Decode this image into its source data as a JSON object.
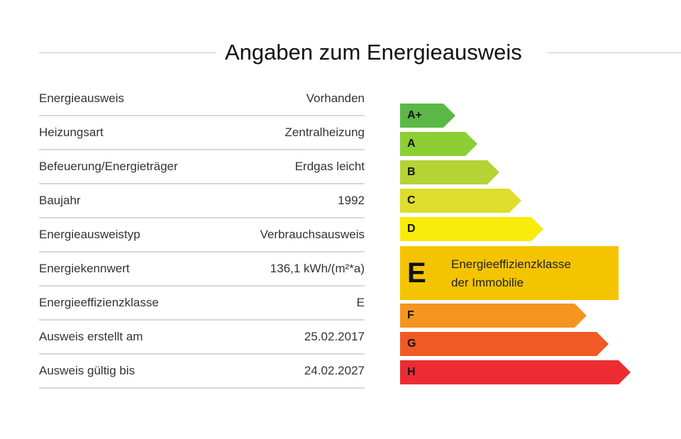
{
  "title": "Angaben zum Energieausweis",
  "details": [
    {
      "label": "Energieausweis",
      "value": "Vorhanden"
    },
    {
      "label": "Heizungsart",
      "value": "Zentralheizung"
    },
    {
      "label": "Befeuerung/Energieträger",
      "value": "Erdgas leicht"
    },
    {
      "label": "Baujahr",
      "value": "1992"
    },
    {
      "label": "Energieausweistyp",
      "value": "Verbrauchsausweis"
    },
    {
      "label": "Energiekennwert",
      "value": "136,1 kWh/(m²*a)"
    },
    {
      "label": "Energieeffizienzklasse",
      "value": "E"
    },
    {
      "label": "Ausweis erstellt am",
      "value": "25.02.2017"
    },
    {
      "label": "Ausweis gültig bis",
      "value": "24.02.2027"
    }
  ],
  "scale": {
    "classes": [
      {
        "label": "A+",
        "color": "#5cb846"
      },
      {
        "label": "A",
        "color": "#8ccf35"
      },
      {
        "label": "B",
        "color": "#b5d334"
      },
      {
        "label": "C",
        "color": "#dedd2b"
      },
      {
        "label": "D",
        "color": "#f7ec0a"
      },
      {
        "label": "E",
        "color": "#f4c400"
      },
      {
        "label": "F",
        "color": "#f4951f"
      },
      {
        "label": "G",
        "color": "#f05a24"
      },
      {
        "label": "H",
        "color": "#ec2b33"
      }
    ],
    "current": {
      "label": "E",
      "text_line1": "Energieeffizienzklasse",
      "text_line2": "der Immobilie"
    }
  }
}
